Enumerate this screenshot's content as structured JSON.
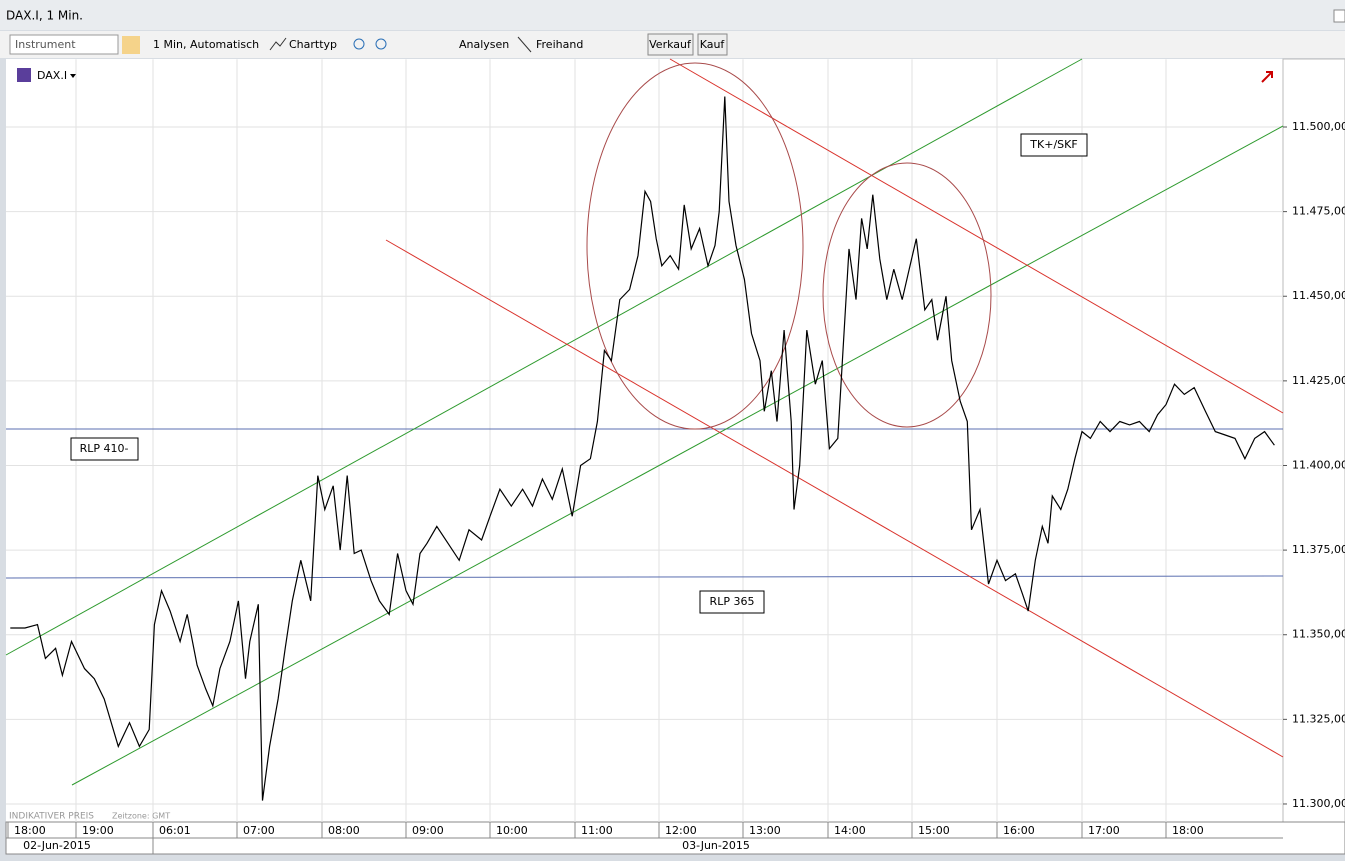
{
  "window": {
    "title": "DAX.I, 1 Min."
  },
  "toolbar": {
    "instrument": "Instrument",
    "interval": "1 Min,  Automatisch",
    "chart_type": "Charttyp",
    "analyses": "Analysen",
    "freehand": "Freihand",
    "sell": "Verkauf",
    "buy": "Kauf"
  },
  "chart_data": {
    "type": "line",
    "x": [
      "18:02",
      "18:15",
      "18:26",
      "18:33",
      "18:42",
      "18:48",
      "18:56",
      "19:06",
      "19:13",
      "19:20",
      "19:30",
      "19:38",
      "19:45",
      "19:52",
      "06:02",
      "06:07",
      "06:13",
      "06:20",
      "06:25",
      "06:32",
      "06:38",
      "06:43",
      "06:48",
      "06:55",
      "07:01",
      "07:06",
      "07:09",
      "07:15",
      "07:18",
      "07:23",
      "07:29",
      "07:34",
      "07:39",
      "07:45",
      "07:52",
      "07:57",
      "08:02",
      "08:08",
      "08:13",
      "08:18",
      "08:23",
      "08:28",
      "08:35",
      "08:41",
      "08:48",
      "08:54",
      "09:00",
      "09:05",
      "09:10",
      "09:15",
      "09:22",
      "09:30",
      "09:38",
      "09:45",
      "09:54",
      "10:00",
      "10:07",
      "10:15",
      "10:23",
      "10:30",
      "10:37",
      "10:44",
      "10:51",
      "10:58",
      "11:04",
      "11:11",
      "11:16",
      "11:21",
      "11:26",
      "11:32",
      "11:39",
      "11:45",
      "11:50",
      "11:54",
      "11:58",
      "12:02",
      "12:08",
      "12:14",
      "12:18",
      "12:23",
      "12:29",
      "12:35",
      "12:40",
      "12:43",
      "12:47",
      "12:50",
      "12:55",
      "13:01",
      "13:06",
      "13:12",
      "13:15",
      "13:20",
      "13:24",
      "13:29",
      "13:34",
      "13:36",
      "13:40",
      "13:45",
      "13:51",
      "13:56",
      "14:01",
      "14:07",
      "14:12",
      "14:15",
      "14:20",
      "14:24",
      "14:28",
      "14:32",
      "14:37",
      "14:42",
      "14:47",
      "14:53",
      "14:58",
      "15:03",
      "15:09",
      "15:14",
      "15:18",
      "15:24",
      "15:28",
      "15:34",
      "15:39",
      "15:42",
      "15:48",
      "15:54",
      "16:00",
      "16:06",
      "16:13",
      "16:18",
      "16:22",
      "16:27",
      "16:32",
      "16:36",
      "16:39",
      "16:45",
      "16:50",
      "16:55",
      "17:00",
      "17:06",
      "17:13",
      "17:20",
      "17:27",
      "17:34",
      "17:41",
      "17:48",
      "17:54",
      "18:00",
      "18:06",
      "18:13",
      "18:20",
      "18:28",
      "18:35",
      "18:42",
      "18:49",
      "18:56",
      "19:03",
      "19:10",
      "19:17"
    ],
    "series": [
      {
        "name": "DAX.I",
        "color": "#000000",
        "values": [
          11352,
          11352,
          11353,
          11343,
          11346,
          11338,
          11348,
          11340,
          11337,
          11331,
          11317,
          11324,
          11317,
          11322,
          11353,
          11363,
          11357,
          11348,
          11356,
          11341,
          11334,
          11329,
          11340,
          11348,
          11360,
          11337,
          11348,
          11359,
          11301,
          11317,
          11331,
          11346,
          11360,
          11372,
          11360,
          11397,
          11387,
          11394,
          11375,
          11397,
          11374,
          11375,
          11366,
          11360,
          11356,
          11374,
          11363,
          11359,
          11374,
          11377,
          11382,
          11377,
          11372,
          11381,
          11378,
          11385,
          11393,
          11388,
          11393,
          11388,
          11396,
          11390,
          11399,
          11385,
          11400,
          11402,
          11413,
          11434,
          11431,
          11449,
          11452,
          11462,
          11481,
          11478,
          11467,
          11459,
          11462,
          11458,
          11477,
          11464,
          11470,
          11459,
          11465,
          11475,
          11509,
          11478,
          11465,
          11455,
          11439,
          11431,
          11416,
          11428,
          11413,
          11440,
          11413,
          11387,
          11400,
          11440,
          11424,
          11431,
          11405,
          11408,
          11443,
          11464,
          11449,
          11473,
          11464,
          11480,
          11461,
          11449,
          11458,
          11449,
          11458,
          11467,
          11446,
          11449,
          11437,
          11450,
          11431,
          11419,
          11413,
          11381,
          11387,
          11365,
          11372,
          11366,
          11368,
          11362,
          11357,
          11372,
          11382,
          11377,
          11391,
          11387,
          11393,
          11402,
          11410,
          11408,
          11413,
          11410,
          11413,
          11412,
          11413,
          11410,
          11415,
          11418,
          11424,
          11421,
          11423,
          11416,
          11410,
          11409,
          11408,
          11402,
          11408,
          11410,
          11406
        ]
      }
    ],
    "ylim": [
      11295,
      11520
    ],
    "yticks": [
      {
        "value": 11300,
        "label": "11.300,00"
      },
      {
        "value": 11325,
        "label": "11.325,00"
      },
      {
        "value": 11350,
        "label": "11.350,00"
      },
      {
        "value": 11375,
        "label": "11.375,00"
      },
      {
        "value": 11400,
        "label": "11.400,00"
      },
      {
        "value": 11425,
        "label": "11.425,00"
      },
      {
        "value": 11450,
        "label": "11.450,00"
      },
      {
        "value": 11475,
        "label": "11.475,00"
      },
      {
        "value": 11500,
        "label": "11.500,00"
      }
    ],
    "xticks": [
      "18:00",
      "19:00",
      "06:01",
      "07:00",
      "08:00",
      "09:00",
      "10:00",
      "11:00",
      "12:00",
      "13:00",
      "14:00",
      "15:00",
      "16:00",
      "17:00",
      "18:00"
    ],
    "dates": [
      "02-Jun-2015",
      "03-Jun-2015"
    ],
    "annotations": [
      "TK+/SKF",
      "RLP 410-",
      "RLP 365"
    ],
    "footer": "INDIKATIVER PREIS",
    "timezone": "Zeitzone: GMT",
    "grid": true
  }
}
